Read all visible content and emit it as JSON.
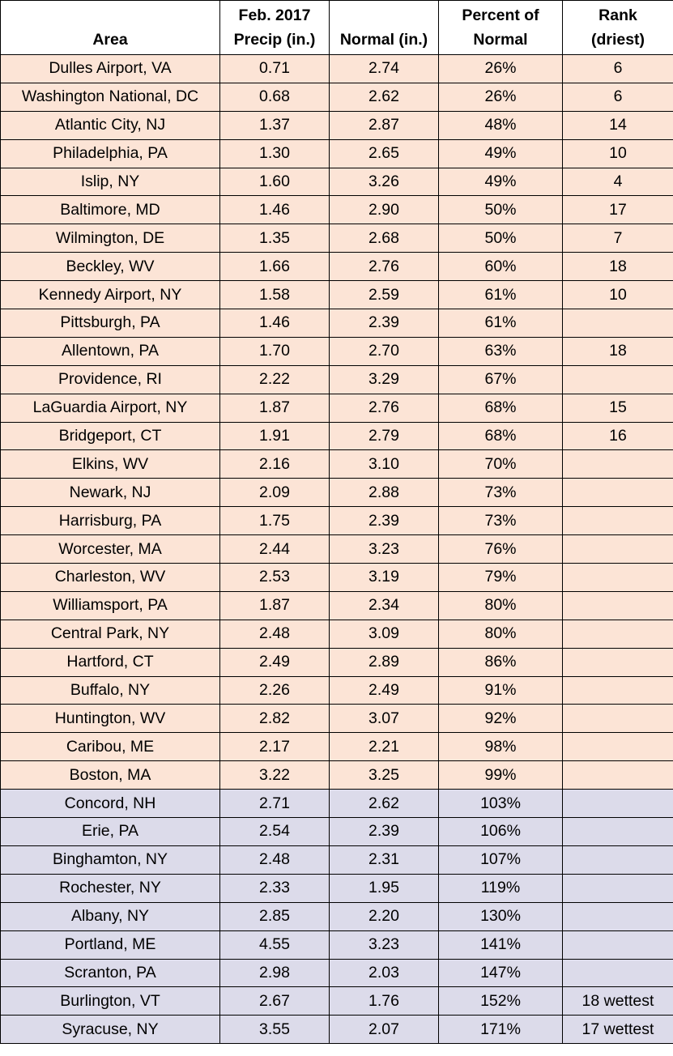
{
  "table": {
    "header": [
      [
        "Area"
      ],
      [
        "Feb. 2017",
        "Precip (in.)"
      ],
      [
        "Normal (in.)"
      ],
      [
        "Percent of",
        "Normal"
      ],
      [
        "Rank",
        "(driest)"
      ]
    ],
    "rows": [
      [
        "Dulles Airport, VA",
        "0.71",
        "2.74",
        "26%",
        "6"
      ],
      [
        "Washington National, DC",
        "0.68",
        "2.62",
        "26%",
        "6"
      ],
      [
        "Atlantic City, NJ",
        "1.37",
        "2.87",
        "48%",
        "14"
      ],
      [
        "Philadelphia, PA",
        "1.30",
        "2.65",
        "49%",
        "10"
      ],
      [
        "Islip, NY",
        "1.60",
        "3.26",
        "49%",
        "4"
      ],
      [
        "Baltimore, MD",
        "1.46",
        "2.90",
        "50%",
        "17"
      ],
      [
        "Wilmington, DE",
        "1.35",
        "2.68",
        "50%",
        "7"
      ],
      [
        "Beckley, WV",
        "1.66",
        "2.76",
        "60%",
        "18"
      ],
      [
        "Kennedy Airport, NY",
        "1.58",
        "2.59",
        "61%",
        "10"
      ],
      [
        "Pittsburgh, PA",
        "1.46",
        "2.39",
        "61%",
        null
      ],
      [
        "Allentown, PA",
        "1.70",
        "2.70",
        "63%",
        "18"
      ],
      [
        "Providence, RI",
        "2.22",
        "3.29",
        "67%",
        null
      ],
      [
        "LaGuardia Airport, NY",
        "1.87",
        "2.76",
        "68%",
        "15"
      ],
      [
        "Bridgeport, CT",
        "1.91",
        "2.79",
        "68%",
        "16"
      ],
      [
        "Elkins, WV",
        "2.16",
        "3.10",
        "70%",
        null
      ],
      [
        "Newark, NJ",
        "2.09",
        "2.88",
        "73%",
        null
      ],
      [
        "Harrisburg, PA",
        "1.75",
        "2.39",
        "73%",
        null
      ],
      [
        "Worcester, MA",
        "2.44",
        "3.23",
        "76%",
        null
      ],
      [
        "Charleston, WV",
        "2.53",
        "3.19",
        "79%",
        null
      ],
      [
        "Williamsport, PA",
        "1.87",
        "2.34",
        "80%",
        null
      ],
      [
        "Central Park, NY",
        "2.48",
        "3.09",
        "80%",
        null
      ],
      [
        "Hartford, CT",
        "2.49",
        "2.89",
        "86%",
        null
      ],
      [
        "Buffalo, NY",
        "2.26",
        "2.49",
        "91%",
        null
      ],
      [
        "Huntington, WV",
        "2.82",
        "3.07",
        "92%",
        null
      ],
      [
        "Caribou, ME",
        "2.17",
        "2.21",
        "98%",
        null
      ],
      [
        "Boston, MA",
        "3.22",
        "3.25",
        "99%",
        null
      ],
      [
        "Concord, NH",
        "2.71",
        "2.62",
        "103%",
        null
      ],
      [
        "Erie, PA",
        "2.54",
        "2.39",
        "106%",
        null
      ],
      [
        "Binghamton, NY",
        "2.48",
        "2.31",
        "107%",
        null
      ],
      [
        "Rochester, NY",
        "2.33",
        "1.95",
        "119%",
        null
      ],
      [
        "Albany, NY",
        "2.85",
        "2.20",
        "130%",
        null
      ],
      [
        "Portland, ME",
        "4.55",
        "3.23",
        "141%",
        null
      ],
      [
        "Scranton, PA",
        "2.98",
        "2.03",
        "147%",
        null
      ],
      [
        "Burlington, VT",
        "2.67",
        "1.76",
        "152%",
        "18 wettest"
      ],
      [
        "Syracuse, NY",
        "3.55",
        "2.07",
        "171%",
        "17 wettest"
      ]
    ],
    "row_colors": [
      "#fce4d6",
      "#fce4d6",
      "#fce4d6",
      "#fce4d6",
      "#fce4d6",
      "#fce4d6",
      "#fce4d6",
      "#fce4d6",
      "#fce4d6",
      "#fce4d6",
      "#fce4d6",
      "#fce4d6",
      "#fce4d6",
      "#fce4d6",
      "#fce4d6",
      "#fce4d6",
      "#fce4d6",
      "#fce4d6",
      "#fce4d6",
      "#fce4d6",
      "#fce4d6",
      "#fce4d6",
      "#fce4d6",
      "#fce4d6",
      "#fce4d6",
      "#fce4d6",
      "#dcdbea",
      "#dcdbea",
      "#dcdbea",
      "#dcdbea",
      "#dcdbea",
      "#dcdbea",
      "#dcdbea",
      "#dcdbea",
      "#dcdbea"
    ]
  }
}
